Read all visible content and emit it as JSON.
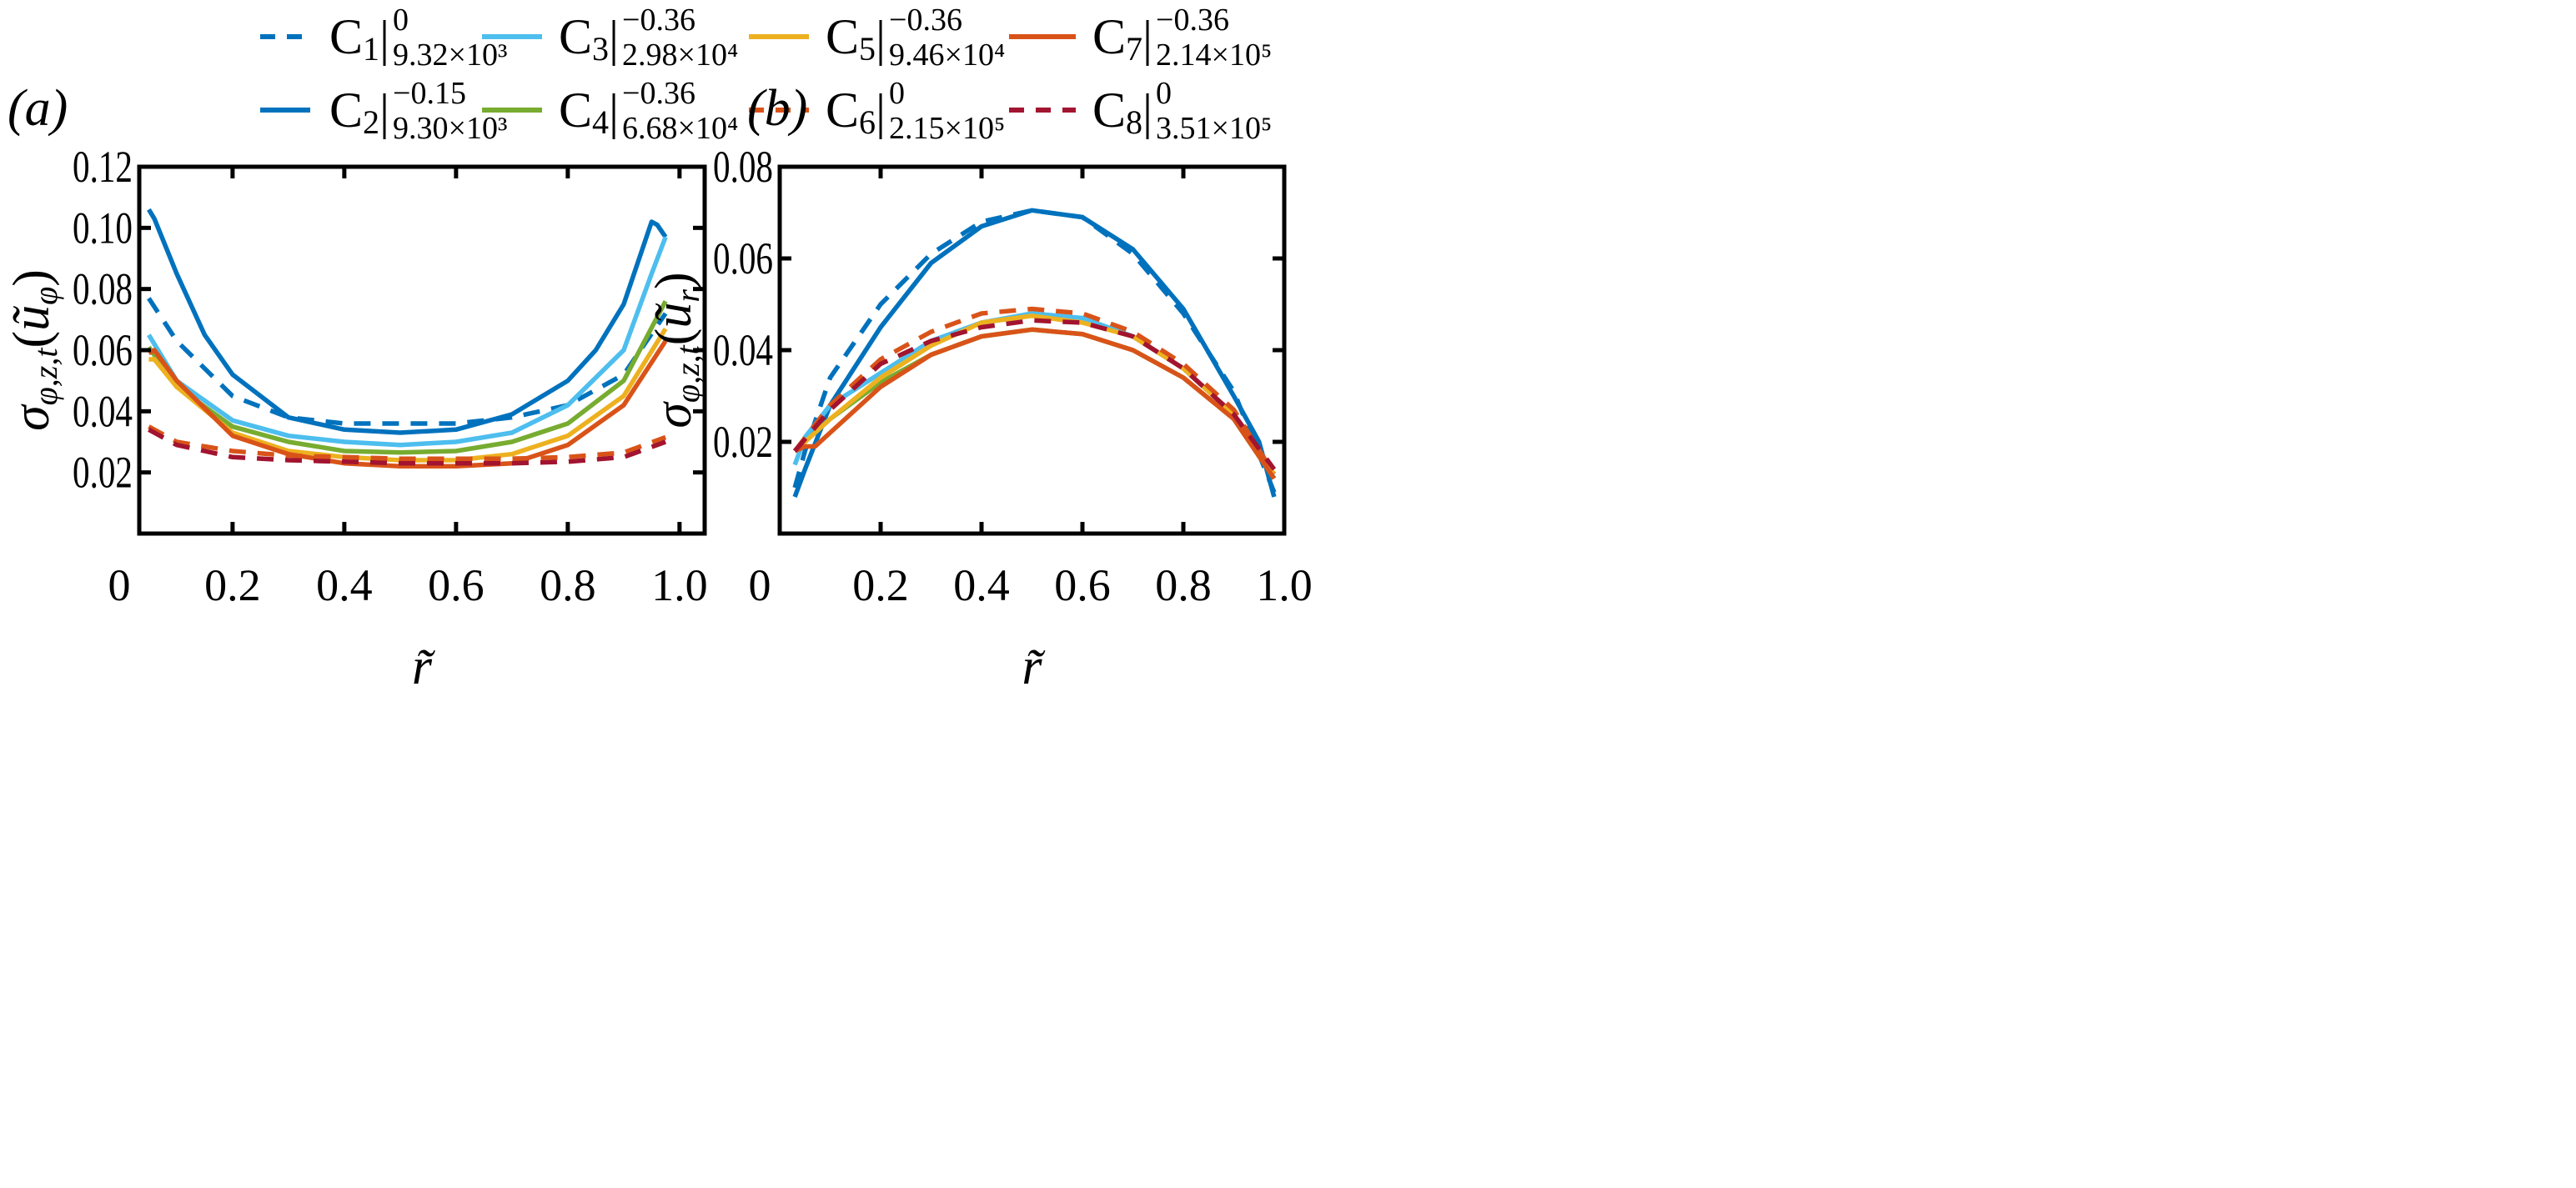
{
  "chart_data": [
    {
      "type": "line",
      "panel_label": "(a)",
      "xlabel": "r̃",
      "ylabel": {
        "base": "σ",
        "sub": "φ,z,t",
        "arg": "ũ",
        "arg_sub": "φ"
      },
      "origin_label": "0",
      "xlim": [
        0.033,
        1.045
      ],
      "ylim": [
        0,
        0.12
      ],
      "xticks": [
        0.2,
        0.4,
        0.6,
        0.8,
        1.0
      ],
      "xtick_labels": [
        "0.2",
        "0.4",
        "0.6",
        "0.8",
        "1.0"
      ],
      "yticks": [
        0.02,
        0.04,
        0.06,
        0.08,
        0.1,
        0.12
      ],
      "ytick_labels": [
        "0.02",
        "0.04",
        "0.06",
        "0.08",
        "0.10",
        "0.12"
      ],
      "grid": false,
      "series": [
        {
          "id": "C1",
          "x": [
            0.05,
            0.1,
            0.2,
            0.3,
            0.4,
            0.5,
            0.6,
            0.7,
            0.8,
            0.9,
            0.975
          ],
          "y": [
            0.077,
            0.063,
            0.045,
            0.038,
            0.036,
            0.036,
            0.036,
            0.038,
            0.042,
            0.052,
            0.072
          ]
        },
        {
          "id": "C2",
          "x": [
            0.05,
            0.06,
            0.1,
            0.15,
            0.2,
            0.3,
            0.4,
            0.5,
            0.6,
            0.7,
            0.8,
            0.85,
            0.9,
            0.95,
            0.96,
            0.975
          ],
          "y": [
            0.106,
            0.103,
            0.085,
            0.065,
            0.052,
            0.038,
            0.034,
            0.033,
            0.034,
            0.039,
            0.05,
            0.06,
            0.075,
            0.102,
            0.101,
            0.097
          ]
        },
        {
          "id": "C3",
          "x": [
            0.05,
            0.1,
            0.2,
            0.3,
            0.4,
            0.5,
            0.6,
            0.7,
            0.8,
            0.9,
            0.95,
            0.975
          ],
          "y": [
            0.065,
            0.05,
            0.037,
            0.032,
            0.03,
            0.029,
            0.03,
            0.033,
            0.042,
            0.06,
            0.085,
            0.097
          ]
        },
        {
          "id": "C4",
          "x": [
            0.05,
            0.1,
            0.2,
            0.3,
            0.4,
            0.5,
            0.6,
            0.7,
            0.8,
            0.9,
            0.975
          ],
          "y": [
            0.061,
            0.048,
            0.035,
            0.03,
            0.027,
            0.0265,
            0.027,
            0.03,
            0.036,
            0.05,
            0.076
          ]
        },
        {
          "id": "C5",
          "x": [
            0.05,
            0.06,
            0.1,
            0.2,
            0.3,
            0.4,
            0.5,
            0.6,
            0.7,
            0.8,
            0.9,
            0.975
          ],
          "y": [
            0.057,
            0.057,
            0.048,
            0.033,
            0.027,
            0.025,
            0.024,
            0.024,
            0.026,
            0.032,
            0.045,
            0.067
          ]
        },
        {
          "id": "C6",
          "x": [
            0.05,
            0.1,
            0.2,
            0.3,
            0.4,
            0.5,
            0.6,
            0.7,
            0.8,
            0.9,
            0.975
          ],
          "y": [
            0.035,
            0.03,
            0.027,
            0.0255,
            0.025,
            0.0245,
            0.0245,
            0.0245,
            0.025,
            0.0265,
            0.0315
          ]
        },
        {
          "id": "C7",
          "x": [
            0.05,
            0.06,
            0.1,
            0.2,
            0.3,
            0.4,
            0.5,
            0.6,
            0.7,
            0.8,
            0.9,
            0.975
          ],
          "y": [
            0.059,
            0.06,
            0.05,
            0.032,
            0.026,
            0.023,
            0.022,
            0.022,
            0.023,
            0.029,
            0.042,
            0.063
          ]
        },
        {
          "id": "C8",
          "x": [
            0.05,
            0.1,
            0.2,
            0.3,
            0.4,
            0.5,
            0.6,
            0.7,
            0.8,
            0.9,
            0.975
          ],
          "y": [
            0.034,
            0.029,
            0.025,
            0.024,
            0.0235,
            0.023,
            0.023,
            0.023,
            0.0235,
            0.025,
            0.03
          ]
        }
      ]
    },
    {
      "type": "line",
      "panel_label": "(b)",
      "xlabel": "r̃",
      "ylabel": {
        "base": "σ",
        "sub": "φ,z,t",
        "arg": "ũ",
        "arg_sub": "r"
      },
      "origin_label": "0",
      "xlim": [
        0,
        1.0
      ],
      "ylim": [
        0,
        0.08
      ],
      "xticks": [
        0.2,
        0.4,
        0.6,
        0.8,
        1.0
      ],
      "xtick_labels": [
        "0.2",
        "0.4",
        "0.6",
        "0.8",
        "1.0"
      ],
      "yticks": [
        0.02,
        0.04,
        0.06,
        0.08
      ],
      "ytick_labels": [
        "0.02",
        "0.04",
        "0.06",
        "0.08"
      ],
      "grid": false,
      "series": [
        {
          "id": "C1",
          "x": [
            0.03,
            0.05,
            0.1,
            0.2,
            0.3,
            0.4,
            0.5,
            0.6,
            0.7,
            0.8,
            0.9,
            0.98
          ],
          "y": [
            0.01,
            0.018,
            0.034,
            0.05,
            0.061,
            0.068,
            0.0705,
            0.069,
            0.061,
            0.048,
            0.031,
            0.009
          ]
        },
        {
          "id": "C2",
          "x": [
            0.03,
            0.05,
            0.1,
            0.2,
            0.3,
            0.4,
            0.5,
            0.6,
            0.7,
            0.8,
            0.9,
            0.95,
            0.98
          ],
          "y": [
            0.008,
            0.014,
            0.028,
            0.045,
            0.059,
            0.067,
            0.0705,
            0.069,
            0.062,
            0.049,
            0.03,
            0.02,
            0.008
          ]
        },
        {
          "id": "C3",
          "x": [
            0.03,
            0.05,
            0.1,
            0.2,
            0.3,
            0.4,
            0.5,
            0.6,
            0.7,
            0.8,
            0.9,
            0.98
          ],
          "y": [
            0.015,
            0.021,
            0.028,
            0.035,
            0.042,
            0.046,
            0.048,
            0.047,
            0.043,
            0.036,
            0.026,
            0.012
          ]
        },
        {
          "id": "C4",
          "x": [
            0.03,
            0.1,
            0.2,
            0.3,
            0.4,
            0.5,
            0.6,
            0.7,
            0.8,
            0.9,
            0.98
          ],
          "y": [
            0.018,
            0.025,
            0.033,
            0.039,
            0.043,
            0.0445,
            0.0435,
            0.04,
            0.034,
            0.025,
            0.012
          ]
        },
        {
          "id": "C5",
          "x": [
            0.03,
            0.05,
            0.1,
            0.2,
            0.3,
            0.4,
            0.5,
            0.6,
            0.7,
            0.8,
            0.9,
            0.98
          ],
          "y": [
            0.018,
            0.02,
            0.025,
            0.034,
            0.041,
            0.046,
            0.0475,
            0.046,
            0.043,
            0.036,
            0.026,
            0.013
          ]
        },
        {
          "id": "C6",
          "x": [
            0.03,
            0.1,
            0.2,
            0.3,
            0.4,
            0.5,
            0.6,
            0.7,
            0.8,
            0.9,
            0.98
          ],
          "y": [
            0.018,
            0.028,
            0.038,
            0.044,
            0.048,
            0.049,
            0.048,
            0.044,
            0.037,
            0.027,
            0.013
          ]
        },
        {
          "id": "C7",
          "x": [
            0.03,
            0.05,
            0.07,
            0.1,
            0.2,
            0.3,
            0.4,
            0.5,
            0.6,
            0.7,
            0.8,
            0.9,
            0.98
          ],
          "y": [
            0.018,
            0.019,
            0.019,
            0.022,
            0.032,
            0.039,
            0.043,
            0.0445,
            0.0435,
            0.04,
            0.034,
            0.025,
            0.012
          ]
        },
        {
          "id": "C8",
          "x": [
            0.03,
            0.1,
            0.2,
            0.3,
            0.4,
            0.5,
            0.6,
            0.7,
            0.8,
            0.9,
            0.98
          ],
          "y": [
            0.018,
            0.027,
            0.037,
            0.042,
            0.045,
            0.0465,
            0.046,
            0.043,
            0.036,
            0.026,
            0.014
          ]
        }
      ]
    }
  ],
  "legend": {
    "placement": "top",
    "entries": [
      {
        "id": "C1",
        "base": "C",
        "index": "1",
        "sup": "0",
        "sub": "9.32×10³",
        "color": "#0072BD",
        "dashed": true
      },
      {
        "id": "C3",
        "base": "C",
        "index": "3",
        "sup": "−0.36",
        "sub": "2.98×10⁴",
        "color": "#4DBEEE",
        "dashed": false
      },
      {
        "id": "C5",
        "base": "C",
        "index": "5",
        "sup": "−0.36",
        "sub": "9.46×10⁴",
        "color": "#EDB120",
        "dashed": false
      },
      {
        "id": "C7",
        "base": "C",
        "index": "7",
        "sup": "−0.36",
        "sub": "2.14×10⁵",
        "color": "#D95319",
        "dashed": false
      },
      {
        "id": "C2",
        "base": "C",
        "index": "2",
        "sup": "−0.15",
        "sub": "9.30×10³",
        "color": "#0072BD",
        "dashed": false
      },
      {
        "id": "C4",
        "base": "C",
        "index": "4",
        "sup": "−0.36",
        "sub": "6.68×10⁴",
        "color": "#77AC30",
        "dashed": false
      },
      {
        "id": "C6",
        "base": "C",
        "index": "6",
        "sup": "0",
        "sub": "2.15×10⁵",
        "color": "#D95319",
        "dashed": true
      },
      {
        "id": "C8",
        "base": "C",
        "index": "8",
        "sup": "0",
        "sub": "3.51×10⁵",
        "color": "#A2142F",
        "dashed": true
      }
    ]
  }
}
